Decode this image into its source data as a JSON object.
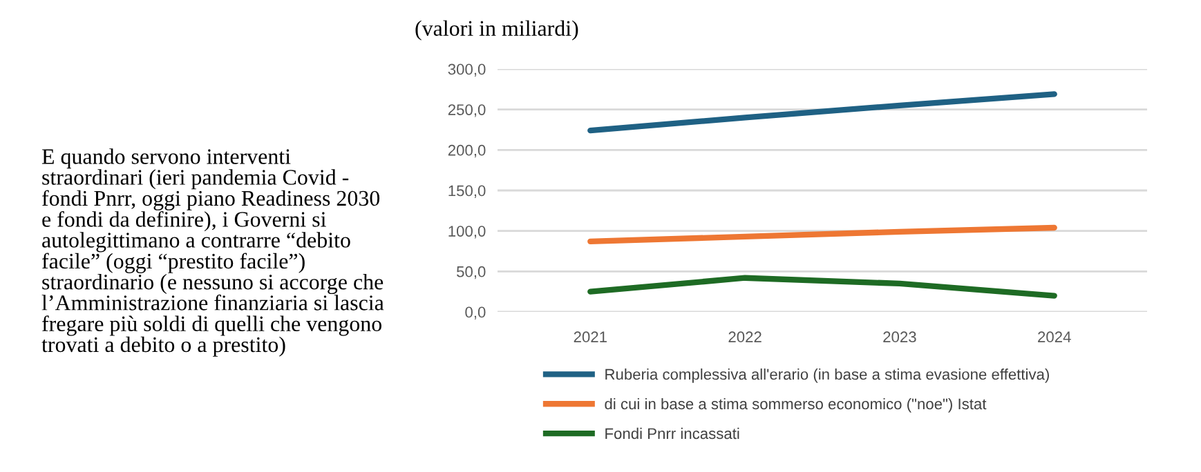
{
  "chart_data": {
    "type": "line",
    "title": "(valori in miliardi)",
    "categories": [
      "2021",
      "2022",
      "2023",
      "2024"
    ],
    "series": [
      {
        "name": "Ruberia complessiva all'erario (in base a stima evasione effettiva)",
        "color": "#1f6184",
        "values": [
          224,
          240,
          255,
          269
        ]
      },
      {
        "name": "di cui in base a stima sommerso economico (\"noe\") Istat",
        "color": "#ee7733",
        "values": [
          87,
          93,
          99,
          104
        ]
      },
      {
        "name": "Fondi Pnrr incassati",
        "color": "#1e6b24",
        "values": [
          25,
          42,
          35,
          20
        ]
      }
    ],
    "ylim": [
      0,
      300
    ],
    "yticks": [
      {
        "value": 0,
        "label": "0,0"
      },
      {
        "value": 50,
        "label": "50,0"
      },
      {
        "value": 100,
        "label": "100,0"
      },
      {
        "value": 150,
        "label": "150,0"
      },
      {
        "value": 200,
        "label": "200,0"
      },
      {
        "value": 250,
        "label": "250,0"
      },
      {
        "value": 300,
        "label": "300,0"
      }
    ],
    "grid": "y",
    "legend": "bottom",
    "marker": "none",
    "line_style": "solid",
    "annotations": [
      "E quando servono interventi straordinari (ieri pandemia Covid - fondi Pnrr, oggi piano Readiness 2030 e fondi da definire), i Governi si autolegittimano a contrarre “debito facile” (oggi “prestito facile”) straordinario (e nessuno si accorge che l’Amministrazione finanziaria si lascia fregare più soldi di quelli che vengono trovati a debito o a prestito)"
    ]
  }
}
